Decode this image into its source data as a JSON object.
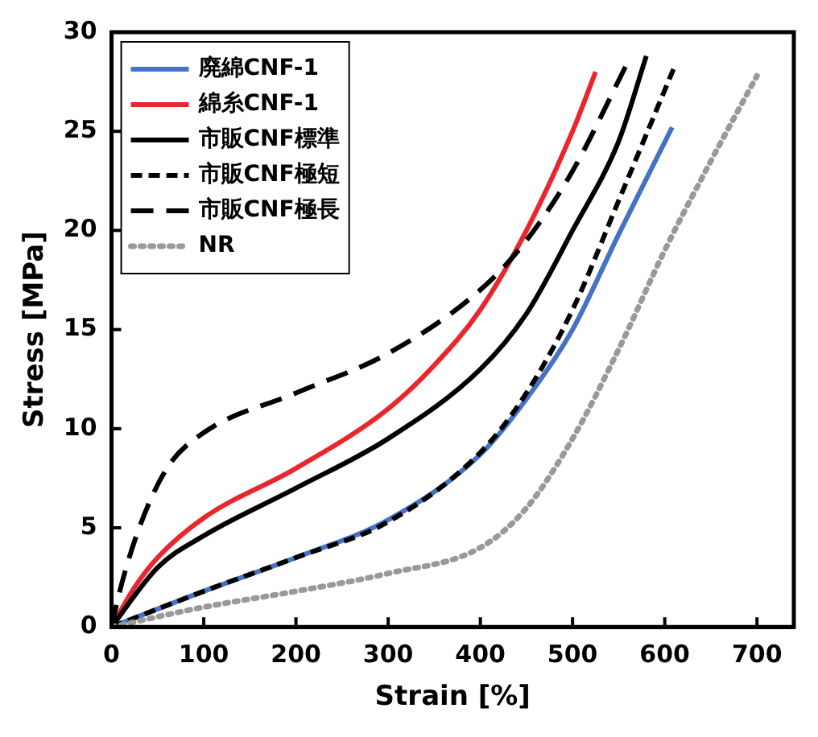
{
  "chart_data": {
    "type": "line",
    "xlabel": "Strain [%]",
    "ylabel": "Stress [MPa]",
    "xlim": [
      0,
      740
    ],
    "ylim": [
      0,
      30
    ],
    "xticks": [
      0,
      100,
      200,
      300,
      400,
      500,
      600,
      700
    ],
    "yticks": [
      0,
      5,
      10,
      15,
      20,
      25,
      30
    ],
    "grid": false,
    "legend": "top left",
    "marker": "none",
    "series": [
      {
        "name": "廃綿CNF-1",
        "color": "#4472c4",
        "line_style": "solid",
        "x": [
          0,
          100,
          200,
          300,
          400,
          450,
          500,
          550,
          608
        ],
        "values": [
          0,
          1.8,
          3.5,
          5.4,
          8.7,
          11.5,
          15,
          19.8,
          25.2
        ]
      },
      {
        "name": "綿糸CNF-1",
        "color": "#e8262b",
        "line_style": "solid",
        "x": [
          0,
          25,
          50,
          100,
          200,
          300,
          350,
          400,
          450,
          500,
          525
        ],
        "values": [
          0,
          2,
          3.5,
          5.5,
          8,
          11,
          13.2,
          16,
          20,
          25,
          28
        ]
      },
      {
        "name": "市販CNF標準",
        "color": "#000000",
        "line_style": "solid",
        "x": [
          0,
          50,
          100,
          200,
          300,
          400,
          450,
          500,
          550,
          580
        ],
        "values": [
          0,
          3,
          4.6,
          7,
          9.5,
          13,
          15.8,
          20,
          24.5,
          28.8
        ]
      },
      {
        "name": "市販CNF極短",
        "color": "#000000",
        "line_style": "dashed",
        "x": [
          0,
          100,
          200,
          300,
          400,
          450,
          500,
          550,
          610
        ],
        "values": [
          0,
          1.8,
          3.5,
          5.3,
          8.8,
          11.8,
          16,
          21.5,
          28.2
        ]
      },
      {
        "name": "市販CNF極長",
        "color": "#000000",
        "line_style": "longdash",
        "x": [
          0,
          10,
          30,
          60,
          100,
          200,
          300,
          400,
          450,
          500,
          560
        ],
        "values": [
          0,
          2,
          5,
          8,
          9.8,
          11.8,
          13.8,
          17,
          19.5,
          23,
          28.5
        ]
      },
      {
        "name": "NR",
        "color": "#999999",
        "line_style": "dotted",
        "x": [
          0,
          100,
          200,
          300,
          400,
          450,
          500,
          550,
          600,
          650,
          700
        ],
        "values": [
          0,
          1,
          1.8,
          2.7,
          4,
          6,
          9.5,
          14,
          19,
          23.5,
          27.8
        ]
      }
    ]
  }
}
